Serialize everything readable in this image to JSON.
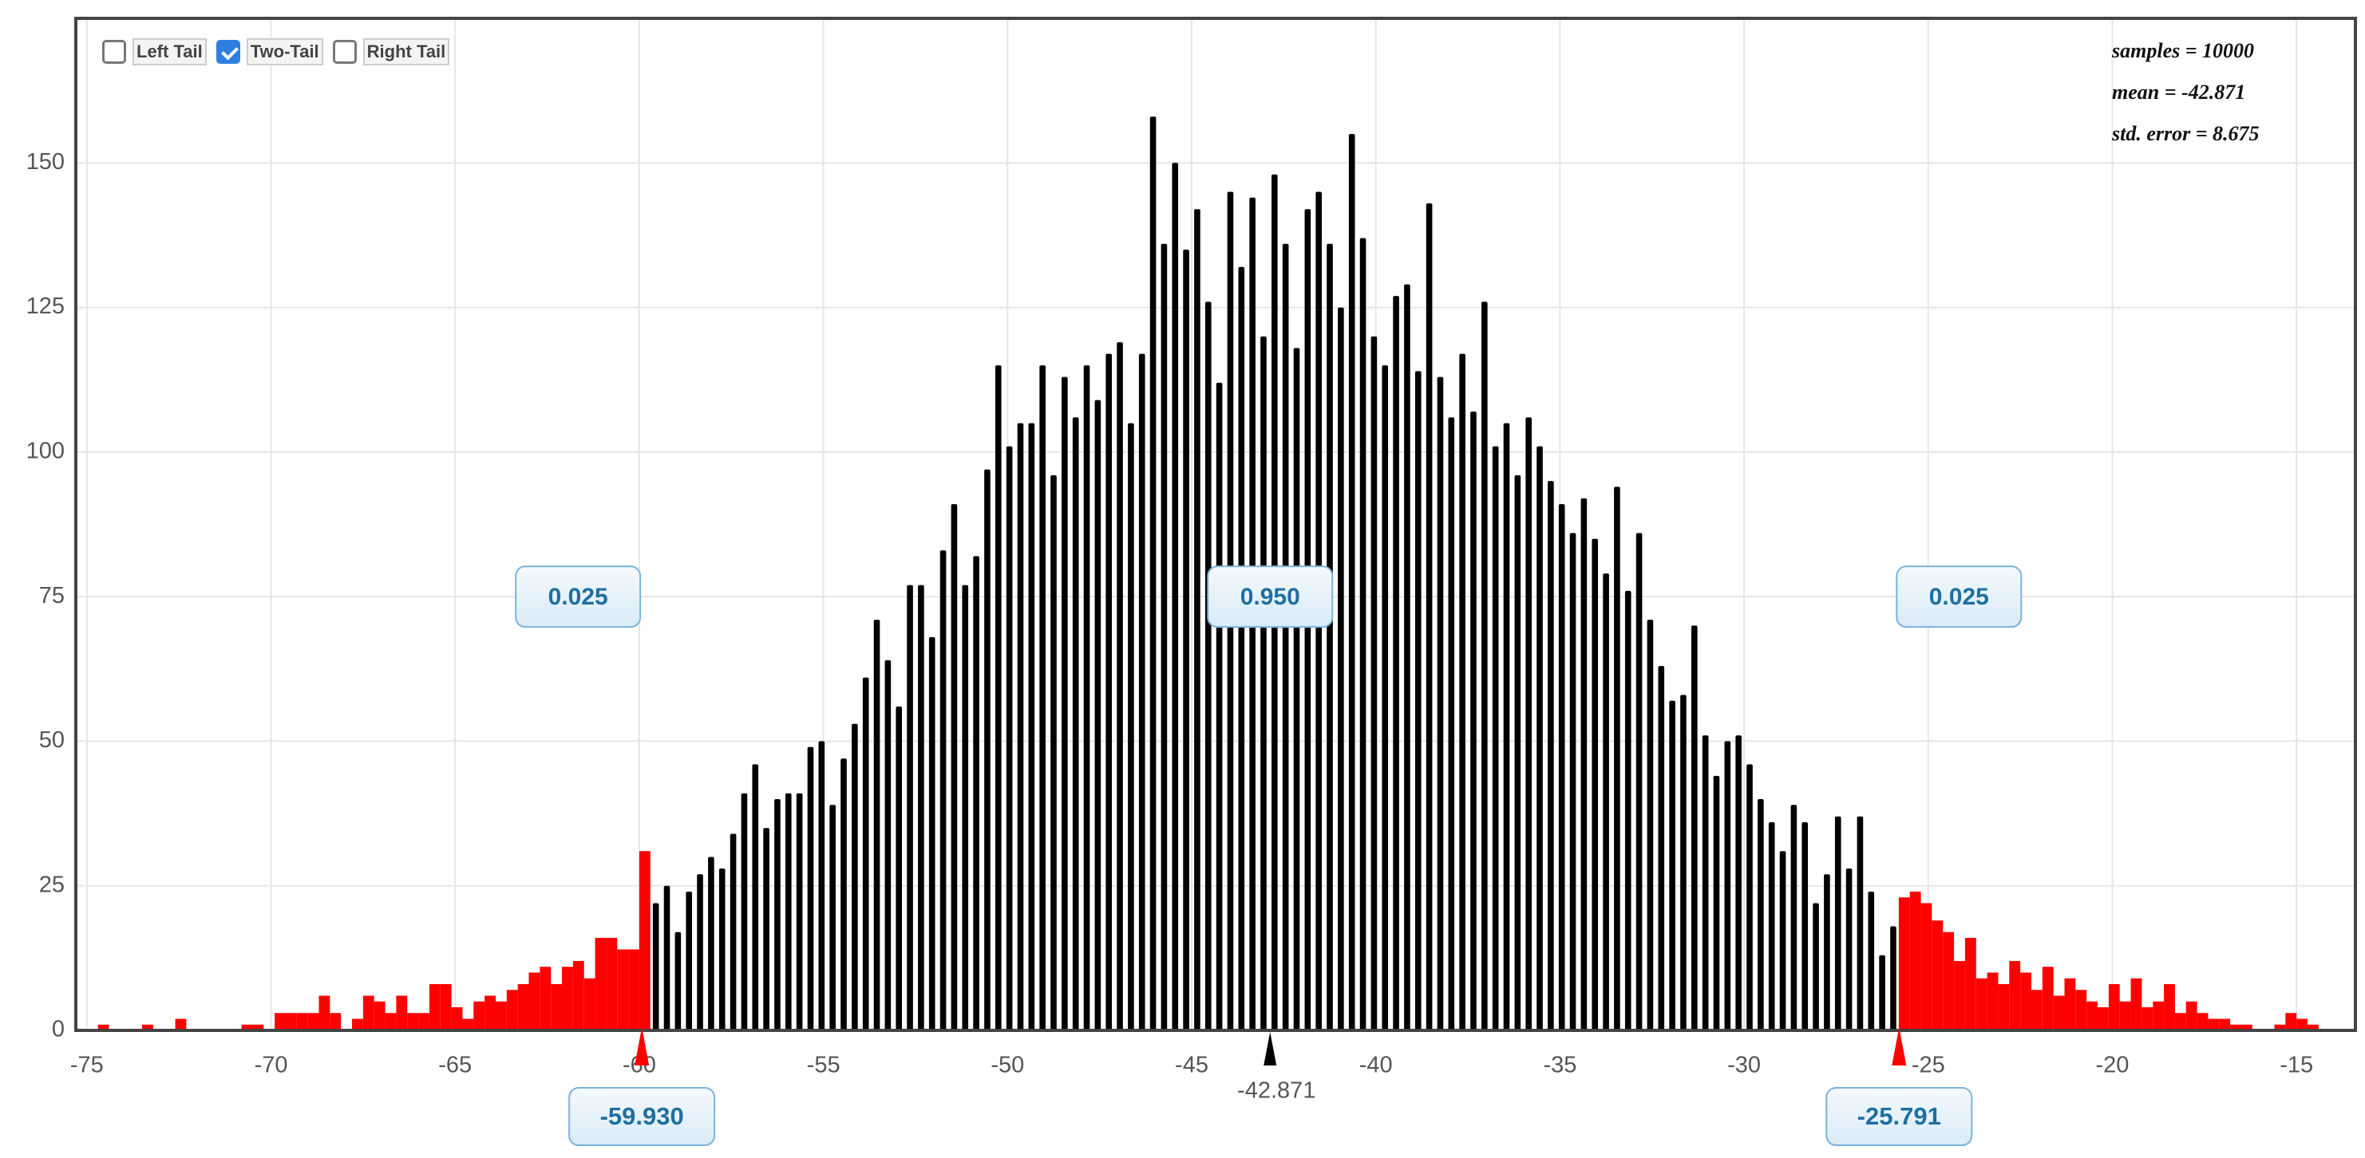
{
  "chart_data": {
    "type": "histogram",
    "bins": [
      -75,
      -74.7,
      -74.4,
      -74.1,
      -73.8,
      -73.5,
      -73.2,
      -72.9,
      -72.6,
      -72.3,
      -72,
      -71.7,
      -71.4,
      -71.1,
      -70.8,
      -70.5,
      -70.2,
      -69.9,
      -69.6,
      -69.3,
      -69,
      -68.7,
      -68.4,
      -68.1,
      -67.8,
      -67.5,
      -67.2,
      -66.9,
      -66.6,
      -66.3,
      -66,
      -65.7,
      -65.4,
      -65.1,
      -64.8,
      -64.5,
      -64.2,
      -63.9,
      -63.6,
      -63.3,
      -63,
      -62.7,
      -62.4,
      -62.1,
      -61.8,
      -61.5,
      -61.2,
      -60.9,
      -60.6,
      -60.3,
      -60,
      -59.7,
      -59.4,
      -59.1,
      -58.8,
      -58.5,
      -58.2,
      -57.9,
      -57.6,
      -57.3,
      -57,
      -56.7,
      -56.4,
      -56.1,
      -55.8,
      -55.5,
      -55.2,
      -54.9,
      -54.6,
      -54.3,
      -54,
      -53.7,
      -53.4,
      -53.1,
      -52.8,
      -52.5,
      -52.2,
      -51.9,
      -51.6,
      -51.3,
      -51,
      -50.7,
      -50.4,
      -50.1,
      -49.8,
      -49.5,
      -49.2,
      -48.9,
      -48.6,
      -48.3,
      -48,
      -47.7,
      -47.4,
      -47.1,
      -46.8,
      -46.5,
      -46.2,
      -45.9,
      -45.6,
      -45.3,
      -45,
      -44.7,
      -44.4,
      -44.1,
      -43.8,
      -43.5,
      -43.2,
      -42.9,
      -42.6,
      -42.3,
      -42,
      -41.7,
      -41.4,
      -41.1,
      -40.8,
      -40.5,
      -40.2,
      -39.9,
      -39.6,
      -39.3,
      -39,
      -38.7,
      -38.4,
      -38.1,
      -37.8,
      -37.5,
      -37.2,
      -36.9,
      -36.6,
      -36.3,
      -36,
      -35.7,
      -35.4,
      -35.1,
      -34.8,
      -34.5,
      -34.2,
      -33.9,
      -33.6,
      -33.3,
      -33,
      -32.7,
      -32.4,
      -32.1,
      -31.8,
      -31.5,
      -31.2,
      -30.9,
      -30.6,
      -30.3,
      -30,
      -29.7,
      -29.4,
      -29.1,
      -28.8,
      -28.5,
      -28.2,
      -27.9,
      -27.6,
      -27.3,
      -27,
      -26.7,
      -26.4,
      -26.1,
      -25.8,
      -25.5,
      -25.2,
      -24.9,
      -24.6,
      -24.3,
      -24,
      -23.7,
      -23.4,
      -23.1,
      -22.8,
      -22.5,
      -22.2,
      -21.9,
      -21.6,
      -21.3,
      -21,
      -20.7,
      -20.4,
      -20.1,
      -19.8,
      -19.5,
      -19.2,
      -18.9,
      -18.6,
      -18.3,
      -18,
      -17.7,
      -17.4,
      -17.1,
      -16.8,
      -16.5,
      -16.2,
      -15.9,
      -15.6,
      -15.3,
      -15,
      -14.7,
      -14.4,
      -14.1
    ],
    "values": [
      0,
      1,
      0,
      0,
      0,
      1,
      0,
      0,
      2,
      0,
      0,
      0,
      0,
      0,
      1,
      1,
      0,
      3,
      3,
      3,
      3,
      6,
      3,
      0,
      2,
      6,
      5,
      3,
      6,
      3,
      3,
      8,
      8,
      4,
      2,
      5,
      6,
      5,
      7,
      8,
      10,
      11,
      8,
      11,
      12,
      9,
      16,
      16,
      14,
      14,
      31,
      22,
      25,
      17,
      24,
      27,
      30,
      28,
      34,
      41,
      46,
      35,
      40,
      41,
      41,
      49,
      50,
      39,
      47,
      53,
      61,
      71,
      64,
      56,
      77,
      77,
      68,
      83,
      91,
      77,
      82,
      97,
      115,
      101,
      105,
      105,
      115,
      96,
      113,
      106,
      115,
      109,
      117,
      119,
      105,
      117,
      158,
      136,
      150,
      135,
      142,
      126,
      112,
      145,
      132,
      144,
      120,
      148,
      136,
      118,
      142,
      145,
      136,
      125,
      155,
      137,
      120,
      115,
      127,
      129,
      114,
      143,
      113,
      106,
      117,
      107,
      126,
      101,
      105,
      96,
      106,
      101,
      95,
      91,
      86,
      92,
      85,
      79,
      94,
      76,
      86,
      71,
      63,
      57,
      58,
      70,
      51,
      44,
      50,
      51,
      46,
      40,
      36,
      31,
      39,
      36,
      22,
      27,
      37,
      28,
      37,
      24,
      13,
      18,
      23,
      24,
      22,
      19,
      17,
      12,
      16,
      9,
      10,
      8,
      12,
      10,
      7,
      11,
      6,
      9,
      7,
      5,
      4,
      8,
      5,
      9,
      4,
      5,
      8,
      3,
      5,
      3,
      2,
      2,
      1,
      1,
      0,
      0,
      1,
      3,
      2,
      1,
      0
    ],
    "xlim": [
      -75.3,
      -13.4
    ],
    "ylim": [
      0,
      175
    ],
    "xticks": [
      -75,
      -70,
      -65,
      -60,
      -55,
      -50,
      -45,
      -40,
      -35,
      -30,
      -25,
      -20,
      -15
    ],
    "yticks": [
      0,
      25,
      50,
      75,
      100,
      125,
      150
    ],
    "grid": true,
    "color": "#000000",
    "tail_color": "#ff0000",
    "mean": -42.871,
    "cutoffs": [
      {
        "value": -59.93,
        "label": "-59.930"
      },
      -25.791
    ],
    "proportions": [
      0.025,
      {
        "value": 0.95,
        "label": "0.950"
      },
      0.025
    ],
    "stats": [
      "samples = 10000",
      "mean = -42.871",
      "std. error = 8.675"
    ]
  },
  "controls": [
    {
      "label": "Left Tail",
      "checked": false
    },
    {
      "label": "Two-Tail",
      "checked": true
    },
    {
      "label": "Right Tail",
      "checked": false
    }
  ]
}
